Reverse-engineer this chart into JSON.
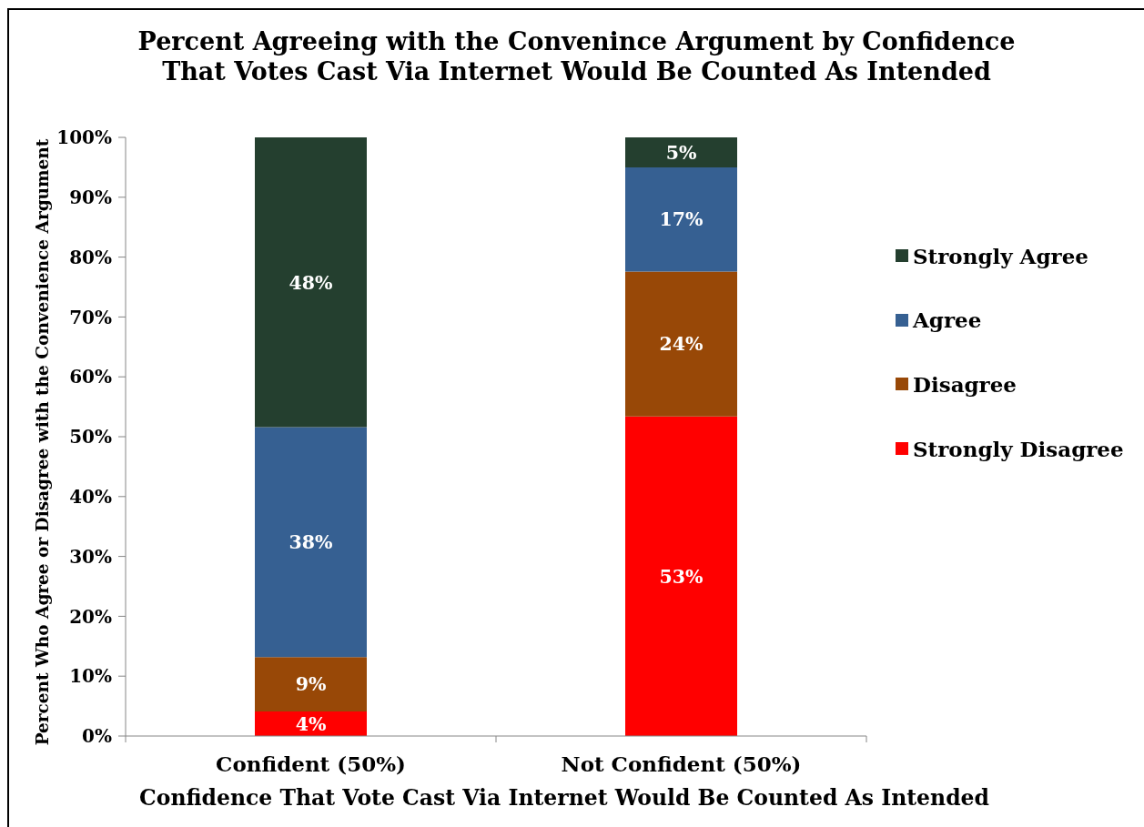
{
  "chart_data": {
    "type": "bar",
    "title": "Percent Agreeing with the Convenince Argument by Confidence\nThat Votes Cast Via Internet Would Be Counted As Intended",
    "xlabel": "Confidence That Vote Cast Via Internet Would Be Counted As Intended",
    "ylabel": "Percent Who Agree or Disagree with the Convenience Argument",
    "categories": [
      "Confident (50%)",
      "Not Confident (50%)"
    ],
    "stacked": true,
    "legend": "right",
    "ylim": [
      0,
      100
    ],
    "yticks": [
      {
        "value": 0,
        "label": "0%"
      },
      {
        "value": 10,
        "label": "10%"
      },
      {
        "value": 20,
        "label": "20%"
      },
      {
        "value": 30,
        "label": "30%"
      },
      {
        "value": 40,
        "label": "40%"
      },
      {
        "value": 50,
        "label": "50%"
      },
      {
        "value": 60,
        "label": "60%"
      },
      {
        "value": 70,
        "label": "70%"
      },
      {
        "value": 80,
        "label": "80%"
      },
      {
        "value": 90,
        "label": "90%"
      },
      {
        "value": 100,
        "label": "100%"
      }
    ],
    "series": [
      {
        "name": "Strongly Disagree",
        "color": "#ff0000",
        "values": [
          4.1,
          53.4
        ],
        "value_labels": [
          "4%",
          "53%"
        ]
      },
      {
        "name": "Disagree",
        "color": "#984807",
        "values": [
          9.1,
          24.2
        ],
        "value_labels": [
          "9%",
          "24%"
        ]
      },
      {
        "name": "Agree",
        "color": "#366092",
        "values": [
          38.4,
          17.4
        ],
        "value_labels": [
          "38%",
          "17%"
        ]
      },
      {
        "name": "Strongly Agree",
        "color": "#243f2f",
        "values": [
          48.4,
          5.0
        ],
        "value_labels": [
          "48%",
          "5%"
        ]
      }
    ]
  }
}
